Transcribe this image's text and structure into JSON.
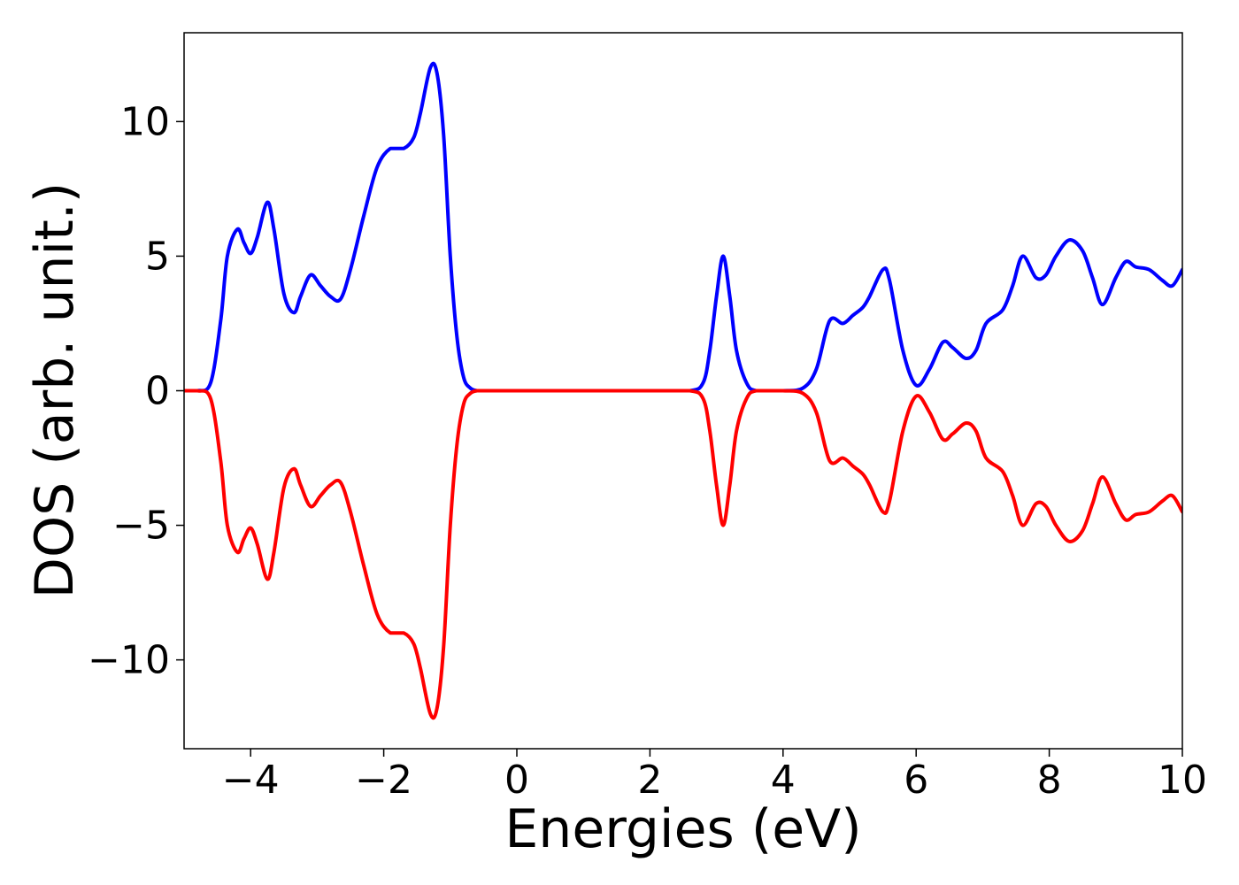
{
  "chart_data": {
    "type": "line",
    "title": "",
    "xlabel": "Energies (eV)",
    "ylabel": "DOS (arb. unit.)",
    "xlim": [
      -5,
      10
    ],
    "ylim": [
      -13.3,
      13.3
    ],
    "xticks": [
      -4,
      -2,
      0,
      2,
      4,
      6,
      8,
      10
    ],
    "xtick_labels": [
      "−4",
      "−2",
      "0",
      "2",
      "4",
      "6",
      "8",
      "10"
    ],
    "yticks": [
      -10,
      -5,
      0,
      5,
      10
    ],
    "ytick_labels": [
      "−10",
      "−5",
      "0",
      "5",
      "10"
    ],
    "grid": false,
    "legend": "none",
    "series": [
      {
        "color": "#0000ff",
        "x": [
          -5.0,
          -4.8,
          -4.6,
          -4.45,
          -4.35,
          -4.2,
          -4.1,
          -4.0,
          -3.9,
          -3.75,
          -3.65,
          -3.5,
          -3.35,
          -3.25,
          -3.1,
          -2.95,
          -2.8,
          -2.65,
          -2.5,
          -2.3,
          -2.1,
          -1.9,
          -1.7,
          -1.55,
          -1.45,
          -1.3,
          -1.2,
          -1.1,
          -1.0,
          -0.9,
          -0.8,
          -0.7,
          -0.6,
          -0.5,
          0.0,
          1.0,
          2.0,
          2.6,
          2.8,
          2.9,
          3.0,
          3.1,
          3.2,
          3.3,
          3.45,
          3.6,
          4.0,
          4.3,
          4.5,
          4.7,
          4.9,
          5.05,
          5.2,
          5.3,
          5.5,
          5.6,
          5.8,
          6.0,
          6.2,
          6.4,
          6.55,
          6.75,
          6.9,
          7.05,
          7.3,
          7.45,
          7.6,
          7.8,
          7.95,
          8.1,
          8.3,
          8.5,
          8.65,
          8.8,
          9.0,
          9.15,
          9.3,
          9.5,
          9.7,
          9.85,
          10.0
        ],
        "values": [
          0.0,
          0.0,
          0.3,
          2.6,
          5.0,
          6.0,
          5.5,
          5.1,
          5.7,
          7.0,
          6.0,
          3.6,
          2.9,
          3.5,
          4.3,
          3.9,
          3.5,
          3.4,
          4.5,
          6.5,
          8.3,
          9.0,
          9.0,
          9.4,
          10.3,
          12.0,
          11.8,
          9.5,
          5.0,
          2.0,
          0.5,
          0.1,
          0.0,
          0.0,
          0.0,
          0.0,
          0.0,
          0.0,
          0.3,
          1.5,
          3.5,
          5.0,
          3.5,
          1.5,
          0.3,
          0.0,
          0.0,
          0.1,
          0.8,
          2.6,
          2.5,
          2.8,
          3.1,
          3.5,
          4.5,
          4.1,
          1.5,
          0.2,
          0.8,
          1.8,
          1.6,
          1.2,
          1.5,
          2.5,
          3.0,
          3.9,
          5.0,
          4.2,
          4.3,
          5.0,
          5.6,
          5.2,
          4.2,
          3.2,
          4.2,
          4.8,
          4.6,
          4.5,
          4.1,
          3.9,
          4.5
        ]
      },
      {
        "color": "#ff0000",
        "x": [
          -5.0,
          -4.8,
          -4.6,
          -4.45,
          -4.35,
          -4.2,
          -4.1,
          -4.0,
          -3.9,
          -3.75,
          -3.65,
          -3.5,
          -3.35,
          -3.25,
          -3.1,
          -2.95,
          -2.8,
          -2.65,
          -2.5,
          -2.3,
          -2.1,
          -1.9,
          -1.7,
          -1.55,
          -1.45,
          -1.3,
          -1.2,
          -1.1,
          -1.0,
          -0.9,
          -0.8,
          -0.7,
          -0.6,
          -0.5,
          0.0,
          1.0,
          2.0,
          2.6,
          2.8,
          2.9,
          3.0,
          3.1,
          3.2,
          3.3,
          3.45,
          3.6,
          4.0,
          4.3,
          4.5,
          4.7,
          4.9,
          5.05,
          5.2,
          5.3,
          5.5,
          5.6,
          5.8,
          6.0,
          6.2,
          6.4,
          6.55,
          6.75,
          6.9,
          7.05,
          7.3,
          7.45,
          7.6,
          7.8,
          7.95,
          8.1,
          8.3,
          8.5,
          8.65,
          8.8,
          9.0,
          9.15,
          9.3,
          9.5,
          9.7,
          9.85,
          10.0
        ],
        "values": [
          0.0,
          0.0,
          -0.3,
          -2.6,
          -5.0,
          -6.0,
          -5.5,
          -5.1,
          -5.7,
          -7.0,
          -6.0,
          -3.6,
          -2.9,
          -3.5,
          -4.3,
          -3.9,
          -3.5,
          -3.4,
          -4.5,
          -6.5,
          -8.3,
          -9.0,
          -9.0,
          -9.4,
          -10.3,
          -12.0,
          -11.8,
          -9.5,
          -5.0,
          -2.0,
          -0.5,
          -0.1,
          0.0,
          0.0,
          0.0,
          0.0,
          0.0,
          0.0,
          -0.3,
          -1.5,
          -3.5,
          -5.0,
          -3.5,
          -1.5,
          -0.3,
          0.0,
          0.0,
          -0.1,
          -0.8,
          -2.6,
          -2.5,
          -2.8,
          -3.1,
          -3.5,
          -4.5,
          -4.1,
          -1.5,
          -0.2,
          -0.8,
          -1.8,
          -1.6,
          -1.2,
          -1.5,
          -2.5,
          -3.0,
          -3.9,
          -5.0,
          -4.2,
          -4.3,
          -5.0,
          -5.6,
          -5.2,
          -4.2,
          -3.2,
          -4.2,
          -4.8,
          -4.6,
          -4.5,
          -4.1,
          -3.9,
          -4.5
        ]
      }
    ]
  }
}
